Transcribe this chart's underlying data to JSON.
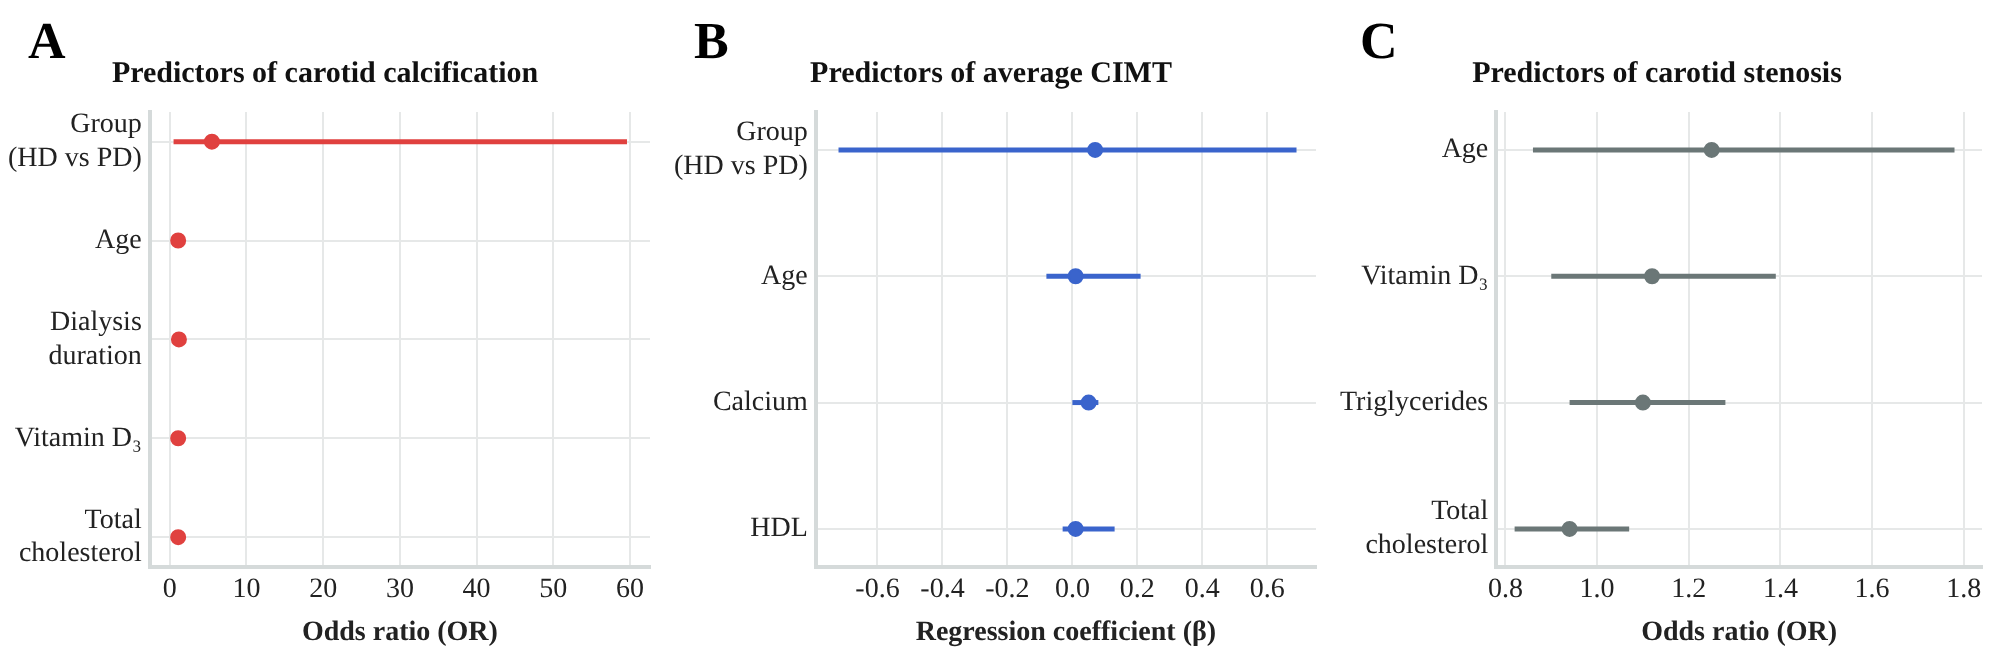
{
  "chart_data": [
    {
      "type": "scatter",
      "title": "Predictors of carotid calcification",
      "xlabel": "Odds ratio (OR)",
      "annotations": [
        "A"
      ],
      "orientation": "horizontal",
      "marker": "circle",
      "grid": true,
      "categories": [
        "Group (HD vs PD)",
        "Age",
        "Dialysis duration",
        "Vitamin D₃",
        "Total cholesterol"
      ],
      "series": [
        {
          "color": "#e0413f",
          "values": [
            5.5,
            1.1,
            1.2,
            1.1,
            1.1
          ],
          "errors": [
            [
              0.5,
              59.6
            ],
            null,
            null,
            null,
            null
          ]
        }
      ],
      "xlim": [
        -2.6,
        62.6
      ],
      "xticks": [
        0,
        10,
        20,
        30,
        40,
        50,
        60
      ]
    },
    {
      "type": "scatter",
      "title": "Predictors of average CIMT",
      "xlabel": "Regression coefficient (β)",
      "annotations": [
        "B"
      ],
      "orientation": "horizontal",
      "marker": "circle",
      "grid": true,
      "categories": [
        "Group (HD vs PD)",
        "Age",
        "Calcium",
        "HDL"
      ],
      "series": [
        {
          "color": "#3a64cc",
          "values": [
            0.07,
            0.01,
            0.05,
            0.01
          ],
          "errors": [
            [
              -0.72,
              0.69
            ],
            [
              -0.08,
              0.21
            ],
            [
              0.0,
              0.08
            ],
            [
              -0.03,
              0.13
            ]
          ]
        }
      ],
      "xlim": [
        -0.79,
        0.75
      ],
      "xticks": [
        {
          "value": -0.6,
          "label": "-0.6"
        },
        {
          "value": -0.4,
          "label": "-0.4"
        },
        {
          "value": -0.2,
          "label": "-0.2"
        },
        {
          "value": 0,
          "label": "0.0"
        },
        {
          "value": 0.2,
          "label": "0.2"
        },
        {
          "value": 0.4,
          "label": "0.4"
        },
        {
          "value": 0.6,
          "label": "0.6"
        }
      ]
    },
    {
      "type": "scatter",
      "title": "Predictors of carotid stenosis",
      "xlabel": "Odds ratio (OR)",
      "annotations": [
        "C"
      ],
      "orientation": "horizontal",
      "marker": "circle",
      "grid": true,
      "categories": [
        "Age",
        "Vitamin D₃",
        "Triglycerides",
        "Total cholesterol"
      ],
      "series": [
        {
          "color": "#6b7777",
          "values": [
            1.25,
            1.12,
            1.1,
            0.94
          ],
          "errors": [
            [
              0.86,
              1.78
            ],
            [
              0.9,
              1.39
            ],
            [
              0.94,
              1.28
            ],
            [
              0.82,
              1.07
            ]
          ]
        }
      ],
      "xlim": [
        0.78,
        1.84
      ],
      "xticks": [
        0.8,
        {
          "value": 1,
          "label": "1.0"
        },
        1.2,
        1.4,
        1.6,
        1.8
      ]
    }
  ]
}
